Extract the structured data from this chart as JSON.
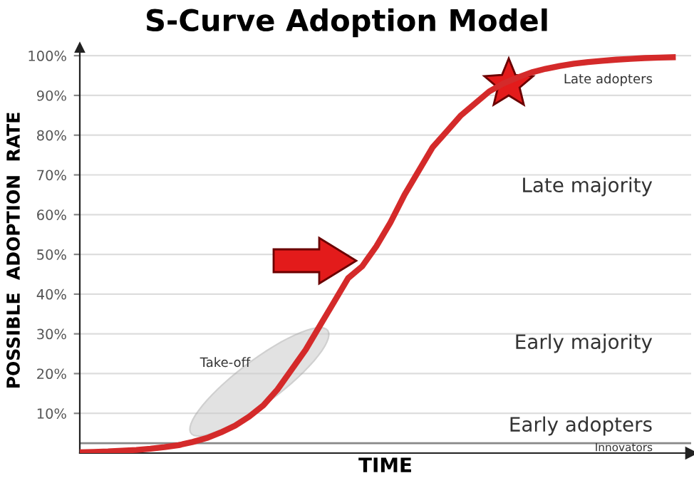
{
  "chart_data": {
    "type": "line",
    "title": "S-Curve Adoption Model",
    "xlabel": "TIME",
    "ylabel": "POSSIBLE  ADOPTION  RATE",
    "categories": [
      null,
      null,
      null,
      null,
      null,
      null,
      null,
      null,
      null,
      null,
      null,
      null,
      null,
      null,
      null,
      null,
      null,
      null,
      null,
      null,
      null,
      null,
      null,
      null,
      null,
      null,
      null,
      null,
      null,
      null,
      null,
      null,
      null,
      null,
      null,
      null,
      null,
      null,
      null,
      null,
      null,
      null,
      null
    ],
    "series": [
      {
        "color": "#d42a2a",
        "values": [
          0.2,
          0.3,
          0.4,
          0.6,
          0.8,
          1.1,
          1.5,
          2,
          2.8,
          3.8,
          5.2,
          6.9,
          9.2,
          12,
          16,
          21,
          26,
          32,
          38,
          44,
          47,
          52,
          58,
          65,
          71,
          77,
          81,
          85,
          88,
          91,
          93,
          94.5,
          95.8,
          96.7,
          97.4,
          98,
          98.4,
          98.7,
          99,
          99.2,
          99.4,
          99.5,
          99.6
        ]
      }
    ],
    "ylim": [
      0,
      102
    ],
    "yticks": [
      {
        "value": 10,
        "label": "10%"
      },
      {
        "value": 20,
        "label": "20%"
      },
      {
        "value": 30,
        "label": "30%"
      },
      {
        "value": 40,
        "label": "40%"
      },
      {
        "value": 50,
        "label": "50%"
      },
      {
        "value": 60,
        "label": "60%"
      },
      {
        "value": 70,
        "label": "70%"
      },
      {
        "value": 80,
        "label": "80%"
      },
      {
        "value": 90,
        "label": "90%"
      },
      {
        "value": 100,
        "label": "100%"
      }
    ],
    "grid": "y",
    "legend": false,
    "marker": "none",
    "line_style": "solid",
    "tick_labels": "y",
    "ref_lines": [
      {
        "axis": "y",
        "value": 2.5,
        "color": "#888888"
      }
    ],
    "annotations": [
      "Late adopters",
      "Late majority",
      "Early majority",
      "Early adopters",
      "Innovators",
      "Take-off"
    ]
  }
}
